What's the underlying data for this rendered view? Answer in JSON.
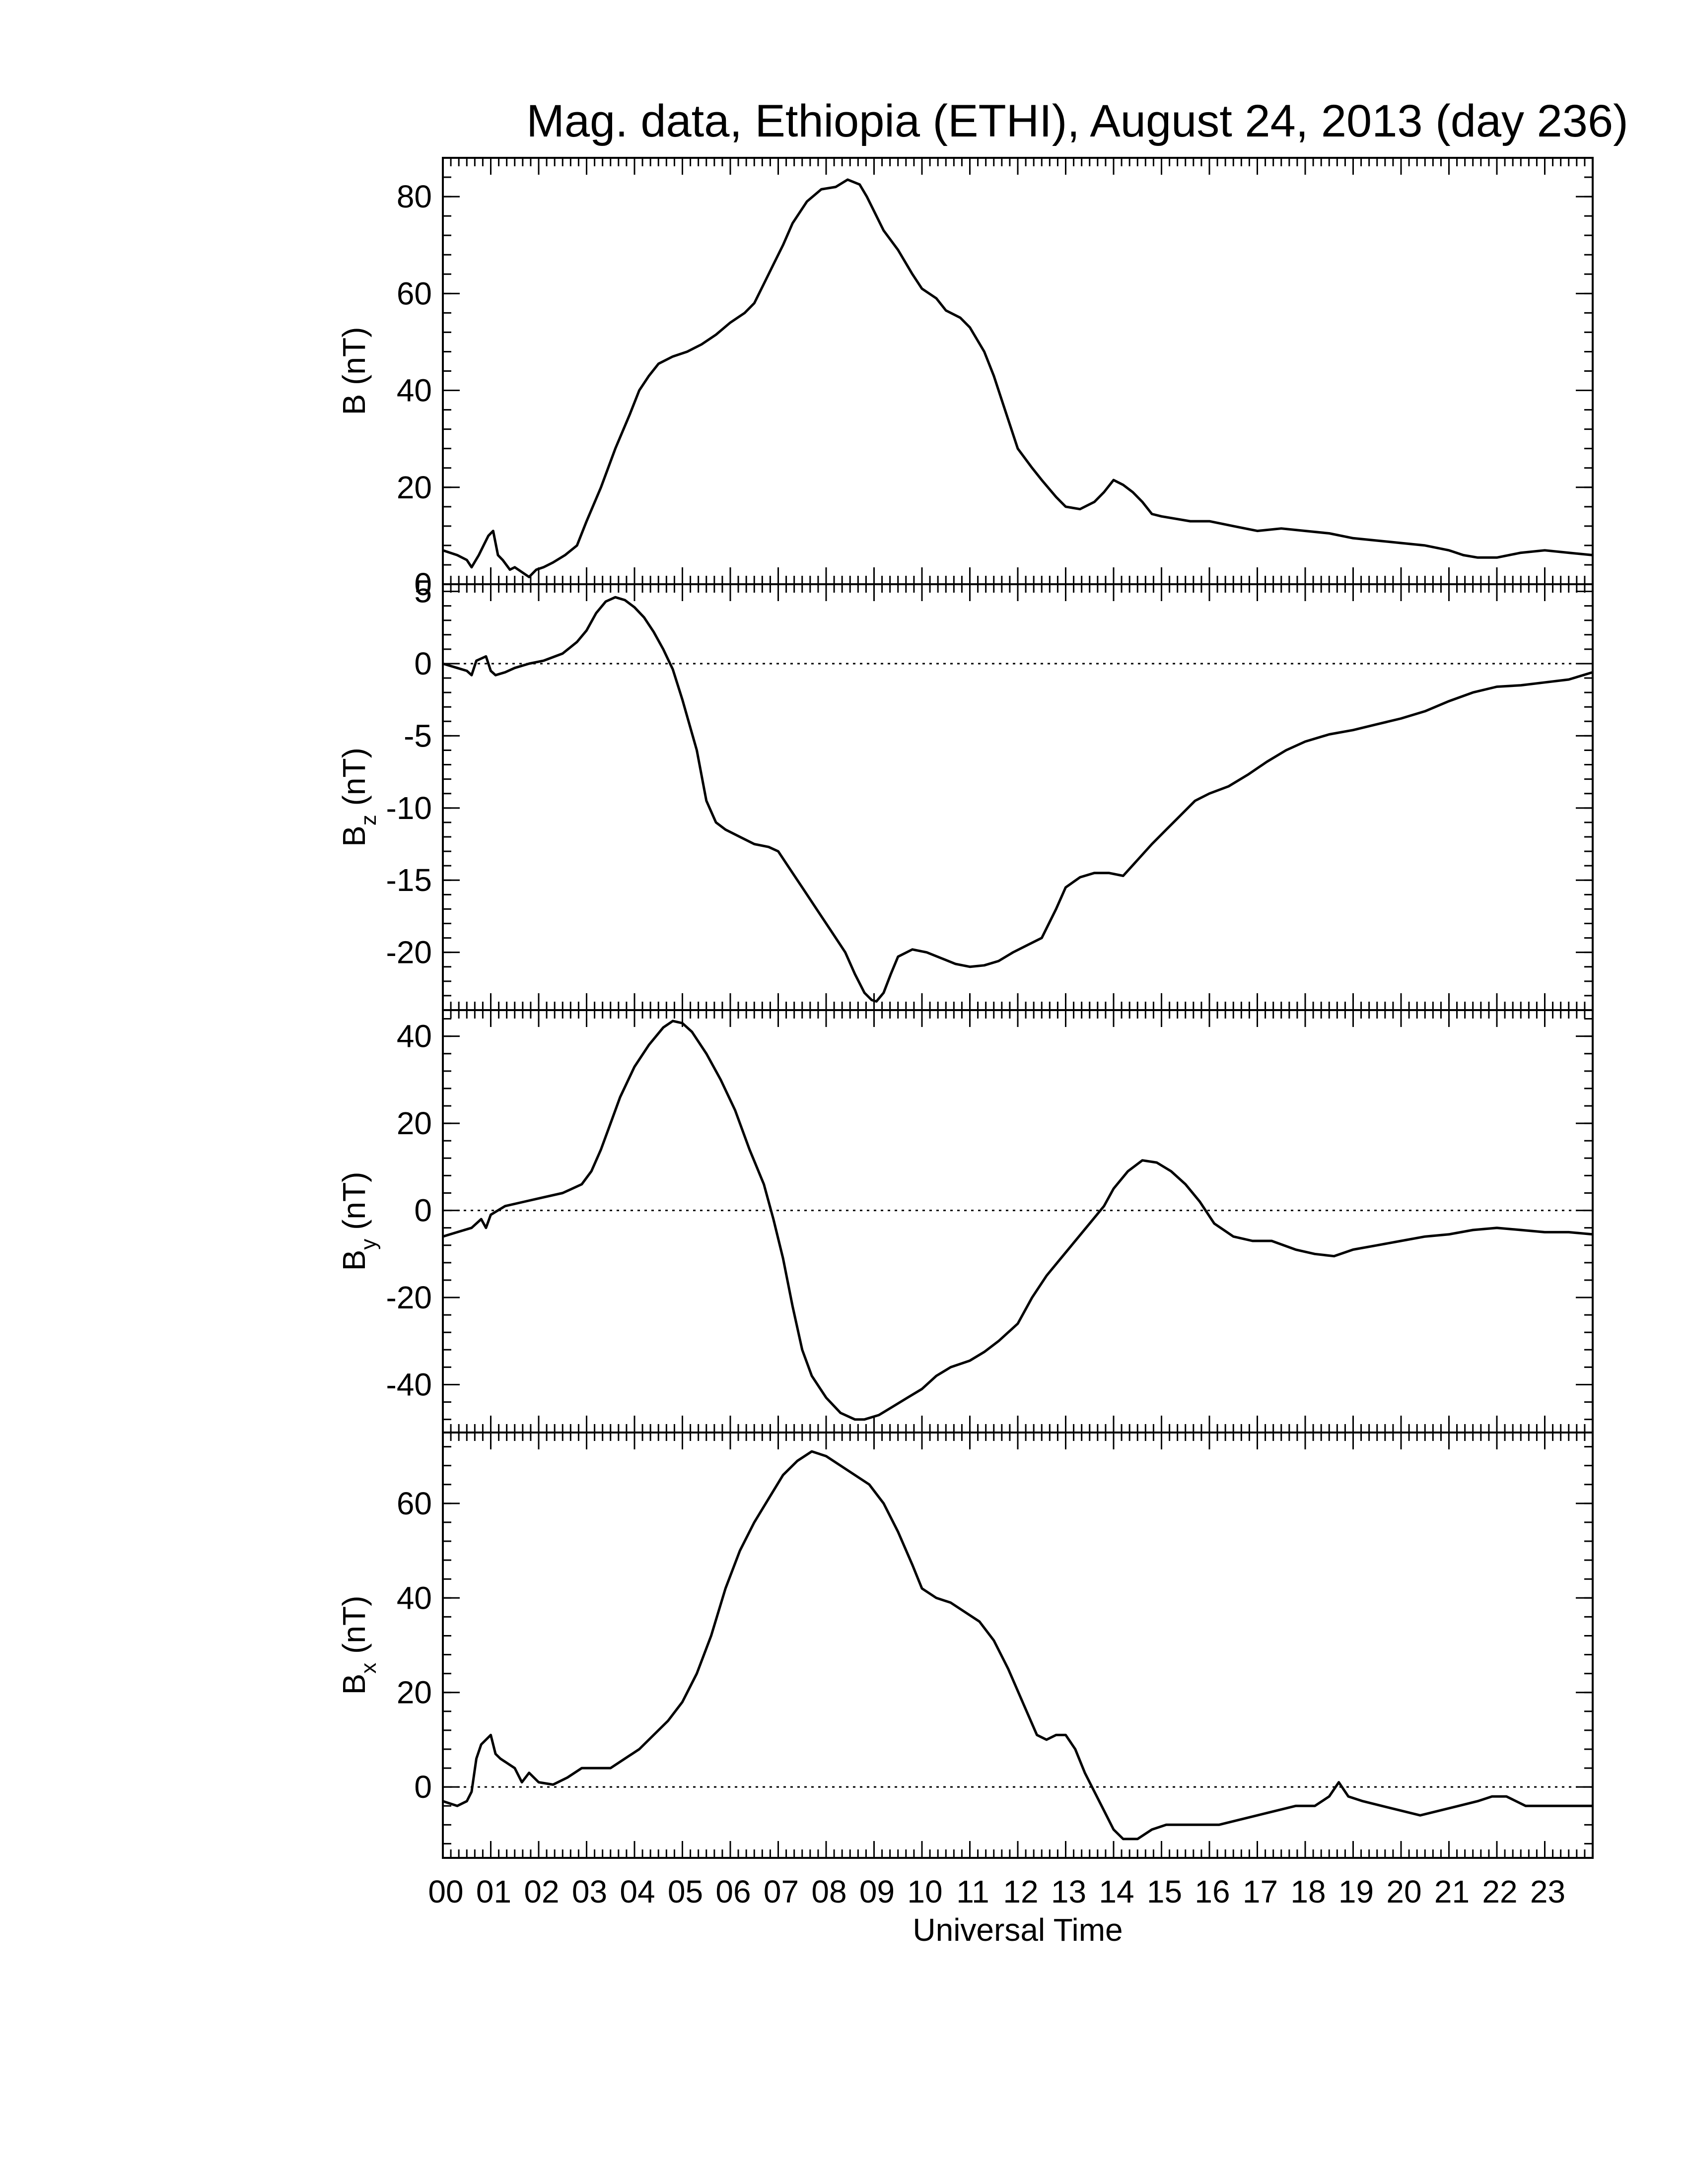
{
  "chart_data": {
    "type": "line",
    "title": "Mag. data, Ethiopia (ETHI), August 24, 2013 (day 236)",
    "xlabel": "Universal Time",
    "xlim": [
      0,
      24
    ],
    "x_tick_labels": [
      "00",
      "01",
      "02",
      "03",
      "04",
      "05",
      "06",
      "07",
      "08",
      "09",
      "10",
      "11",
      "12",
      "13",
      "14",
      "15",
      "16",
      "17",
      "18",
      "19",
      "20",
      "21",
      "22",
      "23"
    ],
    "colors": {
      "line": "#000000",
      "zero_line": "#000000",
      "background": "#ffffff"
    },
    "panels": [
      {
        "ylabel_main": "B",
        "ylabel_sub": "",
        "ylabel_unit": "(nT)",
        "ylim": [
          0,
          88
        ],
        "y_ticks": [
          0,
          20,
          40,
          60,
          80
        ],
        "y_tick_labels": [
          "0",
          "20",
          "40",
          "60",
          "80"
        ],
        "zero_line": false,
        "series": [
          {
            "x": [
              0,
              0.3,
              0.5,
              0.6,
              0.75,
              0.85,
              0.95,
              1.05,
              1.15,
              1.25,
              1.4,
              1.5,
              1.65,
              1.8,
              1.95,
              2.1,
              2.3,
              2.55,
              2.8,
              3.0,
              3.3,
              3.6,
              3.9,
              4.1,
              4.3,
              4.5,
              4.8,
              5.1,
              5.4,
              5.7,
              6.0,
              6.3,
              6.5,
              6.7,
              6.9,
              7.1,
              7.3,
              7.6,
              7.9,
              8.2,
              8.45,
              8.7,
              8.85,
              9.0,
              9.2,
              9.5,
              9.8,
              10.0,
              10.3,
              10.5,
              10.8,
              11.0,
              11.3,
              11.5,
              11.7,
              12.0,
              12.3,
              12.5,
              12.8,
              13.0,
              13.3,
              13.6,
              13.8,
              14.0,
              14.2,
              14.4,
              14.6,
              14.8,
              15.0,
              15.3,
              15.6,
              16.0,
              16.5,
              17.0,
              17.5,
              18.0,
              18.5,
              19.0,
              19.5,
              20.0,
              20.5,
              21.0,
              21.3,
              21.6,
              22.0,
              22.5,
              23.0,
              23.5,
              24.0
            ],
            "y": [
              7,
              6,
              5,
              3.5,
              6,
              8,
              10,
              11,
              6,
              5,
              3,
              3.5,
              2.5,
              1.5,
              3,
              3.5,
              4.5,
              6,
              8,
              13,
              20,
              28,
              35,
              40,
              43,
              45.5,
              47,
              48,
              49.5,
              51.5,
              54,
              56,
              58,
              62,
              66,
              70,
              74.5,
              79,
              81.5,
              82,
              83.5,
              82.5,
              80,
              77,
              73,
              69,
              64,
              61,
              59,
              56.5,
              55,
              53,
              48,
              43,
              37,
              28,
              24,
              21.5,
              18,
              16,
              15.5,
              17,
              19,
              21.5,
              20.5,
              19,
              17,
              14.5,
              14,
              13.5,
              13,
              13,
              12,
              11,
              11.5,
              11,
              10.5,
              9.5,
              9,
              8.5,
              8,
              7,
              6,
              5.5,
              5.5,
              6.5,
              7,
              6.5,
              6
            ]
          }
        ]
      },
      {
        "ylabel_main": "B",
        "ylabel_sub": "z",
        "ylabel_unit": "(nT)",
        "ylim": [
          -24,
          5.5
        ],
        "y_ticks": [
          -20,
          -15,
          -10,
          -5,
          0,
          5
        ],
        "y_tick_labels": [
          "-20",
          "-15",
          "-10",
          "-5",
          "0",
          "5"
        ],
        "zero_line": true,
        "series": [
          {
            "x": [
              0,
              0.3,
              0.5,
              0.6,
              0.7,
              0.9,
              1.0,
              1.1,
              1.3,
              1.5,
              1.8,
              2.1,
              2.5,
              2.8,
              3.0,
              3.2,
              3.4,
              3.6,
              3.8,
              4.0,
              4.2,
              4.4,
              4.6,
              4.8,
              5.0,
              5.3,
              5.5,
              5.7,
              5.9,
              6.2,
              6.5,
              6.8,
              7.0,
              7.2,
              7.5,
              7.8,
              8.1,
              8.4,
              8.6,
              8.8,
              8.95,
              9.05,
              9.2,
              9.35,
              9.5,
              9.8,
              10.1,
              10.4,
              10.7,
              11.0,
              11.3,
              11.6,
              11.9,
              12.2,
              12.5,
              12.8,
              13.0,
              13.3,
              13.6,
              13.9,
              14.2,
              14.5,
              14.8,
              15.1,
              15.4,
              15.7,
              16.0,
              16.4,
              16.8,
              17.2,
              17.6,
              18.0,
              18.5,
              19.0,
              19.5,
              20.0,
              20.5,
              21.0,
              21.5,
              22.0,
              22.5,
              23.0,
              23.5,
              24.0
            ],
            "y": [
              0,
              -0.3,
              -0.5,
              -0.8,
              0.2,
              0.5,
              -0.5,
              -0.8,
              -0.6,
              -0.3,
              0,
              0.2,
              0.7,
              1.5,
              2.3,
              3.5,
              4.3,
              4.6,
              4.4,
              3.9,
              3.2,
              2.2,
              1.0,
              -0.4,
              -2.5,
              -6,
              -9.5,
              -11,
              -11.5,
              -12,
              -12.5,
              -12.7,
              -13,
              -14,
              -15.5,
              -17,
              -18.5,
              -20,
              -21.5,
              -22.8,
              -23.3,
              -23.4,
              -22.8,
              -21.5,
              -20.3,
              -19.8,
              -20,
              -20.4,
              -20.8,
              -21,
              -20.9,
              -20.6,
              -20,
              -19.5,
              -19,
              -17,
              -15.5,
              -14.8,
              -14.5,
              -14.5,
              -14.7,
              -13.6,
              -12.5,
              -11.5,
              -10.5,
              -9.5,
              -9,
              -8.5,
              -7.7,
              -6.8,
              -6,
              -5.4,
              -4.9,
              -4.6,
              -4.2,
              -3.8,
              -3.3,
              -2.6,
              -2,
              -1.6,
              -1.5,
              -1.3,
              -1.1,
              -0.6
            ]
          }
        ]
      },
      {
        "ylabel_main": "B",
        "ylabel_sub": "y",
        "ylabel_unit": "(nT)",
        "ylim": [
          -51,
          46
        ],
        "y_ticks": [
          -40,
          -20,
          0,
          20,
          40
        ],
        "y_tick_labels": [
          "-40",
          "-20",
          "0",
          "20",
          "40"
        ],
        "zero_line": true,
        "series": [
          {
            "x": [
              0,
              0.3,
              0.6,
              0.8,
              0.9,
              1.0,
              1.3,
              1.7,
              2.1,
              2.5,
              2.9,
              3.1,
              3.3,
              3.5,
              3.7,
              4.0,
              4.3,
              4.6,
              4.8,
              5.0,
              5.2,
              5.5,
              5.8,
              6.1,
              6.4,
              6.7,
              6.9,
              7.1,
              7.3,
              7.5,
              7.7,
              8.0,
              8.3,
              8.6,
              8.8,
              9.1,
              9.4,
              9.7,
              10.0,
              10.3,
              10.6,
              11.0,
              11.3,
              11.6,
              12.0,
              12.3,
              12.6,
              12.9,
              13.2,
              13.5,
              13.8,
              14.0,
              14.3,
              14.6,
              14.9,
              15.2,
              15.5,
              15.8,
              16.1,
              16.5,
              16.9,
              17.3,
              17.8,
              18.2,
              18.6,
              19.0,
              19.5,
              20.0,
              20.5,
              21.0,
              21.5,
              22.0,
              22.5,
              23.0,
              23.5,
              24.0
            ],
            "y": [
              -6,
              -5,
              -4,
              -2,
              -4,
              -1,
              1,
              2,
              3,
              4,
              6,
              9,
              14,
              20,
              26,
              33,
              38,
              42,
              43.5,
              43,
              41,
              36,
              30,
              23,
              14,
              6,
              -2,
              -11,
              -22,
              -32,
              -38,
              -43,
              -46.5,
              -48,
              -48,
              -47,
              -45,
              -43,
              -41,
              -38,
              -36,
              -34.5,
              -32.5,
              -30,
              -26,
              -20,
              -15,
              -11,
              -7,
              -3,
              1,
              5,
              9,
              11.5,
              11,
              9,
              6,
              2,
              -3,
              -6,
              -7,
              -7,
              -9,
              -10,
              -10.5,
              -9,
              -8,
              -7,
              -6,
              -5.5,
              -4.5,
              -4,
              -4.5,
              -5,
              -5,
              -5.5
            ]
          }
        ]
      },
      {
        "ylabel_main": "B",
        "ylabel_sub": "x",
        "ylabel_unit": "(nT)",
        "ylim": [
          -15,
          75
        ],
        "y_ticks": [
          0,
          20,
          40,
          60
        ],
        "y_tick_labels": [
          "0",
          "20",
          "40",
          "60"
        ],
        "zero_line": true,
        "series": [
          {
            "x": [
              0,
              0.3,
              0.5,
              0.6,
              0.7,
              0.8,
              0.9,
              1.0,
              1.1,
              1.2,
              1.35,
              1.5,
              1.65,
              1.8,
              2.0,
              2.3,
              2.6,
              2.9,
              3.2,
              3.5,
              3.8,
              4.1,
              4.4,
              4.7,
              5.0,
              5.3,
              5.6,
              5.9,
              6.2,
              6.5,
              6.8,
              7.1,
              7.4,
              7.7,
              8.0,
              8.3,
              8.6,
              8.9,
              9.2,
              9.5,
              9.8,
              10.0,
              10.3,
              10.6,
              10.9,
              11.2,
              11.5,
              11.8,
              12.1,
              12.4,
              12.6,
              12.8,
              13.0,
              13.2,
              13.4,
              13.6,
              13.8,
              14.0,
              14.2,
              14.5,
              14.8,
              15.1,
              15.4,
              15.8,
              16.2,
              16.6,
              17.0,
              17.4,
              17.8,
              18.2,
              18.5,
              18.7,
              18.9,
              19.2,
              19.6,
              20.0,
              20.4,
              20.8,
              21.2,
              21.6,
              21.9,
              22.2,
              22.6,
              23.0,
              23.4,
              23.7,
              24.0
            ],
            "y": [
              -3,
              -4,
              -3,
              -1,
              6,
              9,
              10,
              11,
              7,
              6,
              5,
              4,
              1,
              3,
              1,
              0.5,
              2,
              4,
              4,
              4,
              6,
              8,
              11,
              14,
              18,
              24,
              32,
              42,
              50,
              56,
              61,
              66,
              69,
              71,
              70,
              68,
              66,
              64,
              60,
              54,
              47,
              42,
              40,
              39,
              37,
              35,
              31,
              25,
              18,
              11,
              10,
              11,
              11,
              8,
              3,
              -1,
              -5,
              -9,
              -11,
              -11,
              -9,
              -8,
              -8,
              -8,
              -8,
              -7,
              -6,
              -5,
              -4,
              -4,
              -2,
              1,
              -2,
              -3,
              -4,
              -5,
              -6,
              -5,
              -4,
              -3,
              -2,
              -2,
              -4,
              -4,
              -4,
              -4,
              -4
            ]
          }
        ]
      }
    ]
  }
}
